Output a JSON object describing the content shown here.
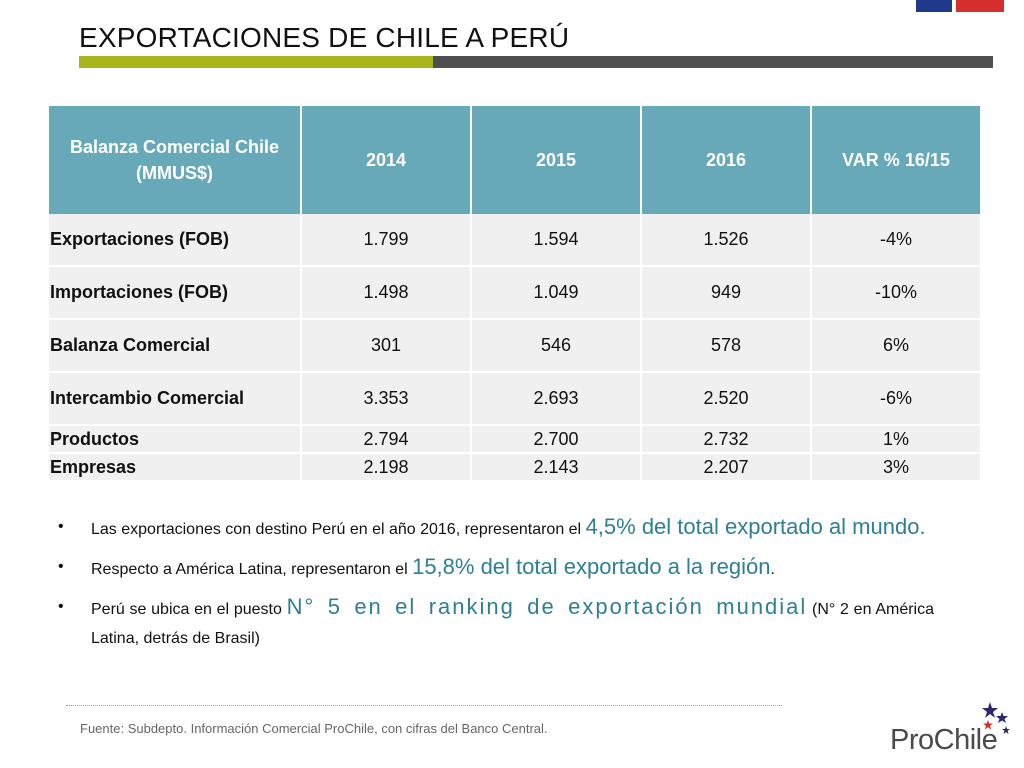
{
  "header": {
    "title": "EXPORTACIONES DE CHILE A PERÚ",
    "bar_colors": {
      "green": "#a7b51b",
      "gray": "#4f4f4f"
    },
    "flag_colors": {
      "blue": "#1f3a8a",
      "red": "#d42e2e"
    }
  },
  "table": {
    "header_color": "#67a8b9",
    "columns": [
      "Balanza Comercial Chile (MMUS$)",
      "2014",
      "2015",
      "2016",
      "VAR % 16/15"
    ],
    "rows": [
      {
        "label": "Exportaciones (FOB)",
        "values": [
          "1.799",
          "1.594",
          "1.526",
          "-4%"
        ]
      },
      {
        "label": "Importaciones (FOB)",
        "values": [
          "1.498",
          "1.049",
          "949",
          "-10%"
        ]
      },
      {
        "label": "Balanza Comercial",
        "values": [
          "301",
          "546",
          "578",
          "6%"
        ]
      },
      {
        "label": "Intercambio Comercial",
        "values": [
          "3.353",
          "2.693",
          "2.520",
          "-6%"
        ]
      },
      {
        "label": "Productos",
        "values": [
          "2.794",
          "2.700",
          "2.732",
          "1%"
        ]
      },
      {
        "label": "Empresas",
        "values": [
          "2.198",
          "2.143",
          "2.207",
          "3%"
        ]
      }
    ]
  },
  "bullets": [
    {
      "marker": "•",
      "text": "Las exportaciones con destino Perú en el año 2016, representaron el ",
      "highlight": "4,5% del total exportado al mundo.",
      "suffix": ""
    },
    {
      "marker": "•",
      "text": "Respecto a América Latina, representaron el ",
      "highlight": "15,8% del total exportado a la región",
      "suffix": "."
    },
    {
      "marker": "•",
      "text": "Perú se ubica en el puesto ",
      "highlight": "N° 5 en el ranking de exportación mundial",
      "suffix": " (N° 2 en América Latina, detrás de Brasil)"
    }
  ],
  "highlight_color": "#2e7f95",
  "footer": {
    "source": "Fuente: Subdepto. Información Comercial ProChile, con cifras del Banco Central.",
    "logo_text": "ProChile"
  }
}
